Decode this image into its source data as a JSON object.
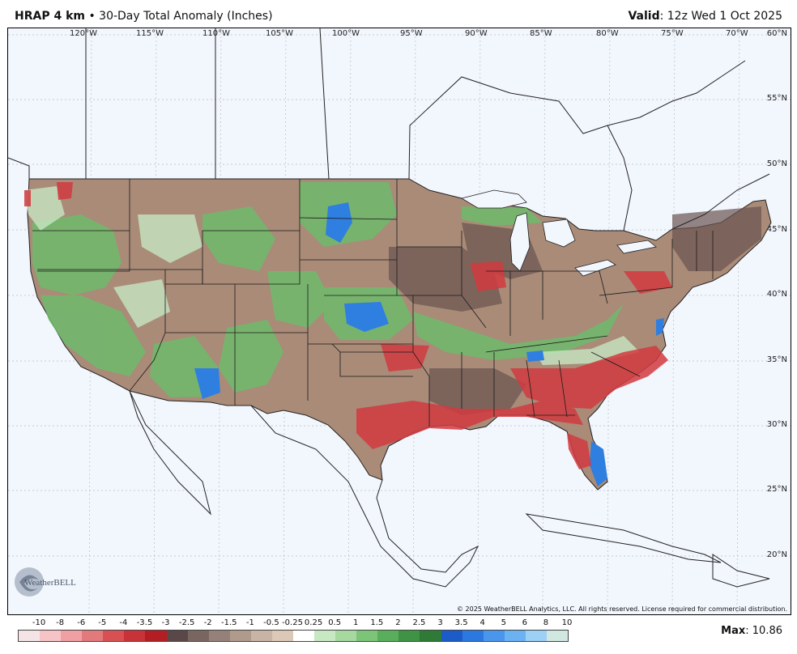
{
  "header": {
    "model": "HRAP 4 km",
    "bullet": "•",
    "product": "30-Day Total Anomaly (Inches)",
    "valid_label": "Valid",
    "valid_time": ": 12z Wed 1 Oct 2025"
  },
  "map": {
    "longitude_labels": [
      "120°W",
      "115°W",
      "110°W",
      "105°W",
      "100°W",
      "95°W",
      "90°W",
      "85°W",
      "80°W",
      "75°W",
      "70°W"
    ],
    "latitude_labels": [
      "60°N",
      "55°N",
      "50°N",
      "45°N",
      "40°N",
      "35°N",
      "30°N",
      "25°N",
      "20°N"
    ],
    "copyright": "© 2025 WeatherBELL Analytics, LLC. All rights reserved. License required for commercial distribution.",
    "logo_text": "WeatherBELL",
    "logo_icon": "swirl-logo-icon"
  },
  "legend": {
    "labels": [
      "-10",
      "-8",
      "-6",
      "-5",
      "-4",
      "-3.5",
      "-3",
      "-2.5",
      "-2",
      "-1.5",
      "-1",
      "-0.5",
      "-0.25",
      "0.25",
      "0.5",
      "1",
      "1.5",
      "2",
      "2.5",
      "3",
      "3.5",
      "4",
      "5",
      "6",
      "8",
      "10"
    ],
    "colors": [
      "#f4e4e6",
      "#f6c4c6",
      "#f0a0a2",
      "#e27a7c",
      "#d85054",
      "#c93238",
      "#b31e24",
      "#5a4848",
      "#7a6660",
      "#96807a",
      "#b09a8c",
      "#c8b4a4",
      "#dcc8b6",
      "#ffffff",
      "#c8e8c4",
      "#a6d8a0",
      "#7cc478",
      "#58ae5a",
      "#3e9444",
      "#2e7a36",
      "#1c5cc8",
      "#2a78e0",
      "#4a96ec",
      "#6ab2f2",
      "#9cd0f6",
      "#d0e8e0"
    ]
  },
  "max": {
    "label": "Max",
    "value": ": 10.86"
  }
}
